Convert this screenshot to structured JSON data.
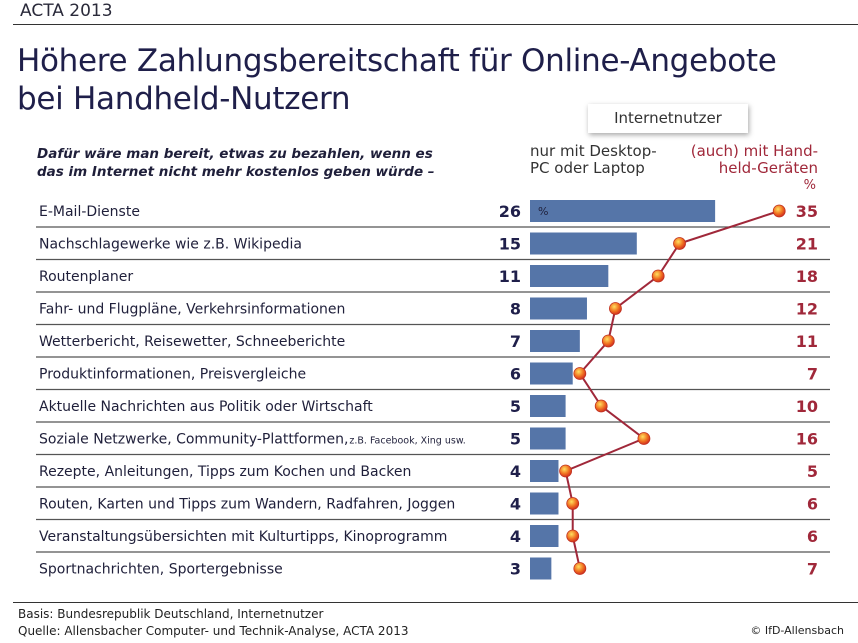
{
  "header": {
    "tag": "ACTA 2013",
    "title_line1": "Höhere Zahlungsbereitschaft für Online-Angebote",
    "title_line2": "bei Handheld-Nutzern"
  },
  "question": {
    "line1": "Dafür wäre man bereit, etwas zu bezahlen, wenn es",
    "line2": "das im Internet nicht mehr kostenlos geben würde –"
  },
  "footer": {
    "basis": "Basis: Bundesrepublik Deutschland, Internetnutzer",
    "source": "Quelle: Allensbacher Computer- und Technik-Analyse, ACTA 2013",
    "copyright": "© IfD-Allensbach"
  },
  "chart_data": {
    "type": "bar",
    "group_label": "Internetnutzer",
    "unit": "%",
    "categories": [
      "E-Mail-Dienste",
      "Nachschlagewerke wie z.B. Wikipedia",
      "Routenplaner",
      "Fahr- und Flugpläne, Verkehrsinformationen",
      "Wetterbericht, Reisewetter, Schneeberichte",
      "Produktinformationen, Preisvergleiche",
      "Aktuelle Nachrichten aus Politik oder Wirtschaft",
      "Soziale Netzwerke, Community-Plattformen,",
      "Rezepte, Anleitungen, Tipps zum Kochen und Backen",
      "Routen, Karten und Tipps zum Wandern, Radfahren, Joggen",
      "Veranstaltungsübersichten mit Kulturtipps, Kinoprogramm",
      "Sportnachrichten, Sportergebnisse"
    ],
    "category_notes": {
      "7": "z.B. Facebook, Xing usw."
    },
    "series": [
      {
        "name": "nur mit Desktop-PC oder Laptop",
        "name_line1": "nur mit Desktop-",
        "name_line2": "PC oder Laptop",
        "type": "bar",
        "color": "#5575a8",
        "values": [
          26,
          15,
          11,
          8,
          7,
          6,
          5,
          5,
          4,
          4,
          4,
          3
        ]
      },
      {
        "name": "(auch) mit Handheld-Geräten",
        "name_line1": "(auch) mit Hand-",
        "name_line2": "held-Geräten",
        "type": "line",
        "color": "#a0283a",
        "marker_color": "#f07020",
        "values": [
          35,
          21,
          18,
          12,
          11,
          7,
          10,
          16,
          5,
          6,
          6,
          7
        ]
      }
    ]
  }
}
